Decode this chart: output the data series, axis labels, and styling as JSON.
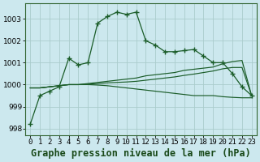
{
  "title": "Graphe pression niveau de la mer (hPa)",
  "background_color": "#cce8ee",
  "grid_color": "#aacccc",
  "line_color": "#1a5c28",
  "ylim": [
    997.7,
    1003.7
  ],
  "yticks": [
    998,
    999,
    1000,
    1001,
    1002,
    1003
  ],
  "x_labels": [
    "0",
    "1",
    "2",
    "3",
    "4",
    "5",
    "6",
    "7",
    "8",
    "9",
    "10",
    "11",
    "12",
    "13",
    "14",
    "15",
    "16",
    "17",
    "18",
    "19",
    "20",
    "21",
    "22",
    "23"
  ],
  "s1": [
    998.2,
    999.5,
    999.7,
    999.9,
    1001.2,
    1000.9,
    1001.0,
    1002.8,
    1003.1,
    1003.3,
    1003.2,
    1003.3,
    1002.0,
    1001.8,
    1001.5,
    1001.5,
    1001.55,
    1001.6,
    1001.3,
    1001.0,
    1001.0,
    1000.5,
    999.9,
    999.5
  ],
  "s2": [
    999.85,
    999.85,
    999.9,
    999.95,
    1000.0,
    1000.0,
    1000.05,
    1000.1,
    1000.15,
    1000.2,
    1000.25,
    1000.3,
    1000.4,
    1000.45,
    1000.5,
    1000.55,
    1000.65,
    1000.7,
    1000.75,
    1000.8,
    1000.95,
    1001.05,
    1001.1,
    999.5
  ],
  "s3": [
    999.85,
    999.85,
    999.9,
    999.95,
    1000.0,
    1000.0,
    1000.0,
    999.98,
    999.95,
    999.9,
    999.85,
    999.8,
    999.75,
    999.7,
    999.65,
    999.6,
    999.55,
    999.5,
    999.5,
    999.5,
    999.45,
    999.42,
    999.4,
    999.4
  ],
  "s4": [
    999.85,
    999.85,
    999.9,
    999.95,
    1000.0,
    1000.0,
    1000.02,
    1000.05,
    1000.08,
    1000.1,
    1000.12,
    1000.15,
    1000.2,
    1000.25,
    1000.3,
    1000.35,
    1000.42,
    1000.48,
    1000.55,
    1000.62,
    1000.72,
    1000.78,
    1000.78,
    999.5
  ],
  "title_fontsize": 8.5,
  "tick_fontsize": 6.5
}
